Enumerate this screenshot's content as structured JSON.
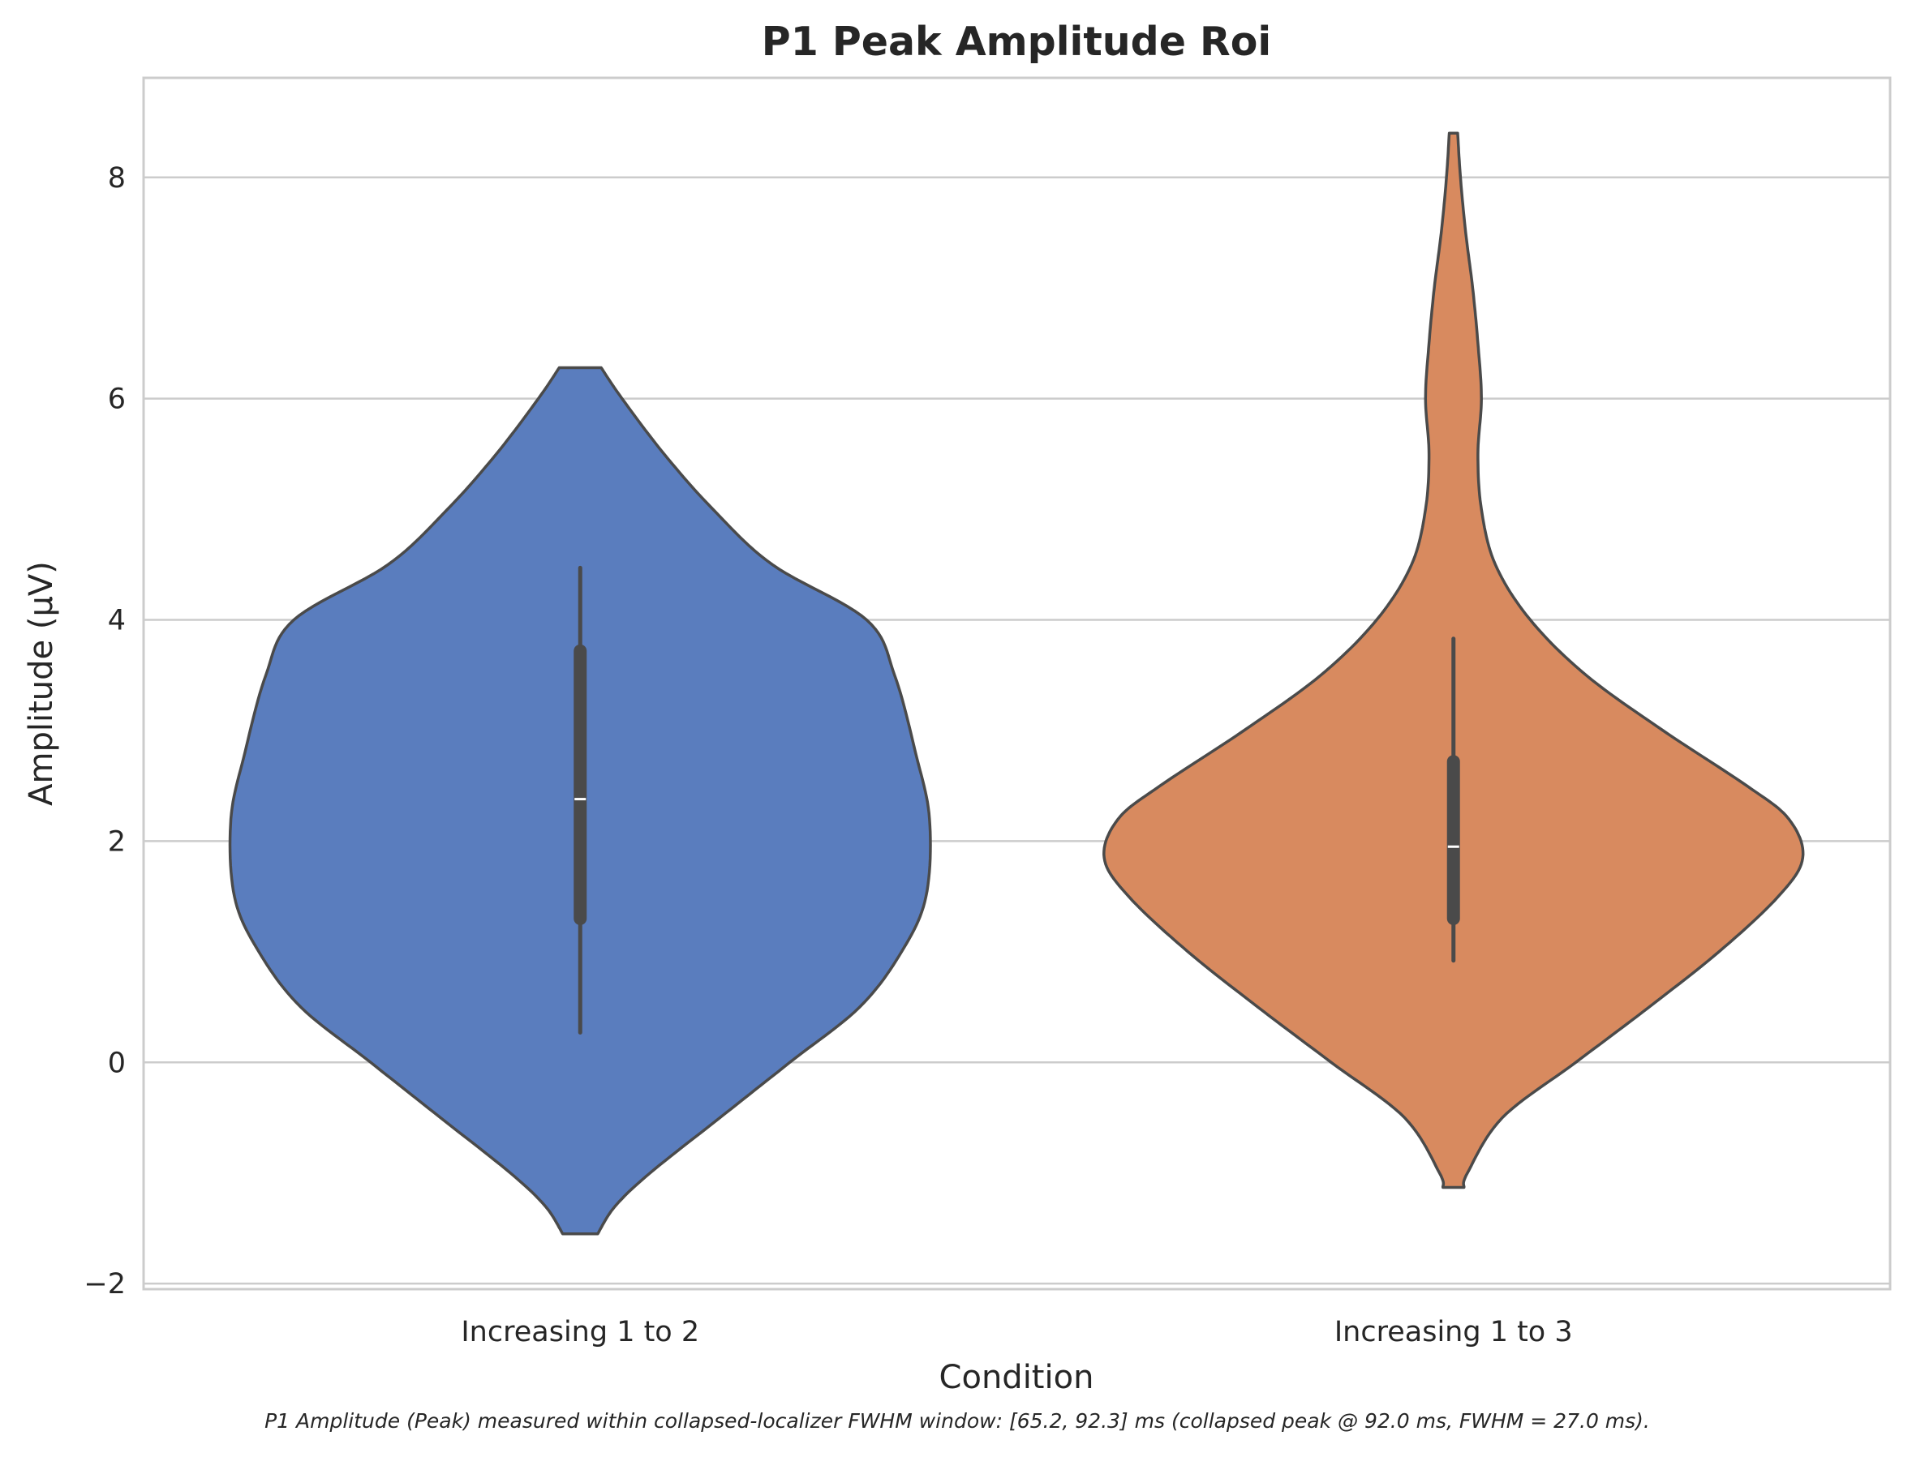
{
  "chart_data": {
    "type": "violin",
    "title": "P1 Peak Amplitude Roi",
    "xlabel": "Condition",
    "ylabel": "Amplitude (µV)",
    "caption": "P1 Amplitude (Peak) measured within collapsed-localizer FWHM window: [65.2, 92.3] ms (collapsed peak @ 92.0 ms, FWHM = 27.0 ms).",
    "ylim": [
      -2.05,
      8.9
    ],
    "yticks": [
      -2,
      0,
      2,
      4,
      6,
      8
    ],
    "ytick_labels": [
      "−2",
      "0",
      "2",
      "4",
      "6",
      "8"
    ],
    "grid": "horizontal",
    "categories": [
      "Increasing 1 to 2",
      "Increasing 1 to 3"
    ],
    "violins": [
      {
        "category": "Increasing 1 to 2",
        "color": "#5a7dbe",
        "median": 2.38,
        "q1": 1.3,
        "q3": 3.72,
        "whisker_low": 0.27,
        "whisker_high": 4.47,
        "profile": [
          [
            -1.55,
            0.05
          ],
          [
            -1.3,
            0.1
          ],
          [
            -1.0,
            0.2
          ],
          [
            -0.5,
            0.4
          ],
          [
            0.0,
            0.6
          ],
          [
            0.5,
            0.8
          ],
          [
            1.0,
            0.92
          ],
          [
            1.5,
            0.99
          ],
          [
            2.2,
            1.0
          ],
          [
            2.8,
            0.96
          ],
          [
            3.5,
            0.9
          ],
          [
            4.0,
            0.82
          ],
          [
            4.5,
            0.55
          ],
          [
            5.0,
            0.38
          ],
          [
            5.5,
            0.24
          ],
          [
            6.0,
            0.12
          ],
          [
            6.28,
            0.06
          ]
        ]
      },
      {
        "category": "Increasing 1 to 3",
        "color": "#d88a5f",
        "median": 1.95,
        "q1": 1.3,
        "q3": 2.72,
        "whisker_low": 0.92,
        "whisker_high": 3.83,
        "profile": [
          [
            -1.13,
            0.03
          ],
          [
            -1.0,
            0.04
          ],
          [
            -0.5,
            0.14
          ],
          [
            0.0,
            0.35
          ],
          [
            0.5,
            0.56
          ],
          [
            1.0,
            0.76
          ],
          [
            1.5,
            0.93
          ],
          [
            1.85,
            1.0
          ],
          [
            2.2,
            0.96
          ],
          [
            2.5,
            0.84
          ],
          [
            3.0,
            0.6
          ],
          [
            3.5,
            0.38
          ],
          [
            4.0,
            0.22
          ],
          [
            4.5,
            0.12
          ],
          [
            5.0,
            0.08
          ],
          [
            5.5,
            0.07
          ],
          [
            6.0,
            0.08
          ],
          [
            6.5,
            0.07
          ],
          [
            7.0,
            0.055
          ],
          [
            7.5,
            0.035
          ],
          [
            8.0,
            0.02
          ],
          [
            8.4,
            0.012
          ]
        ]
      }
    ]
  }
}
